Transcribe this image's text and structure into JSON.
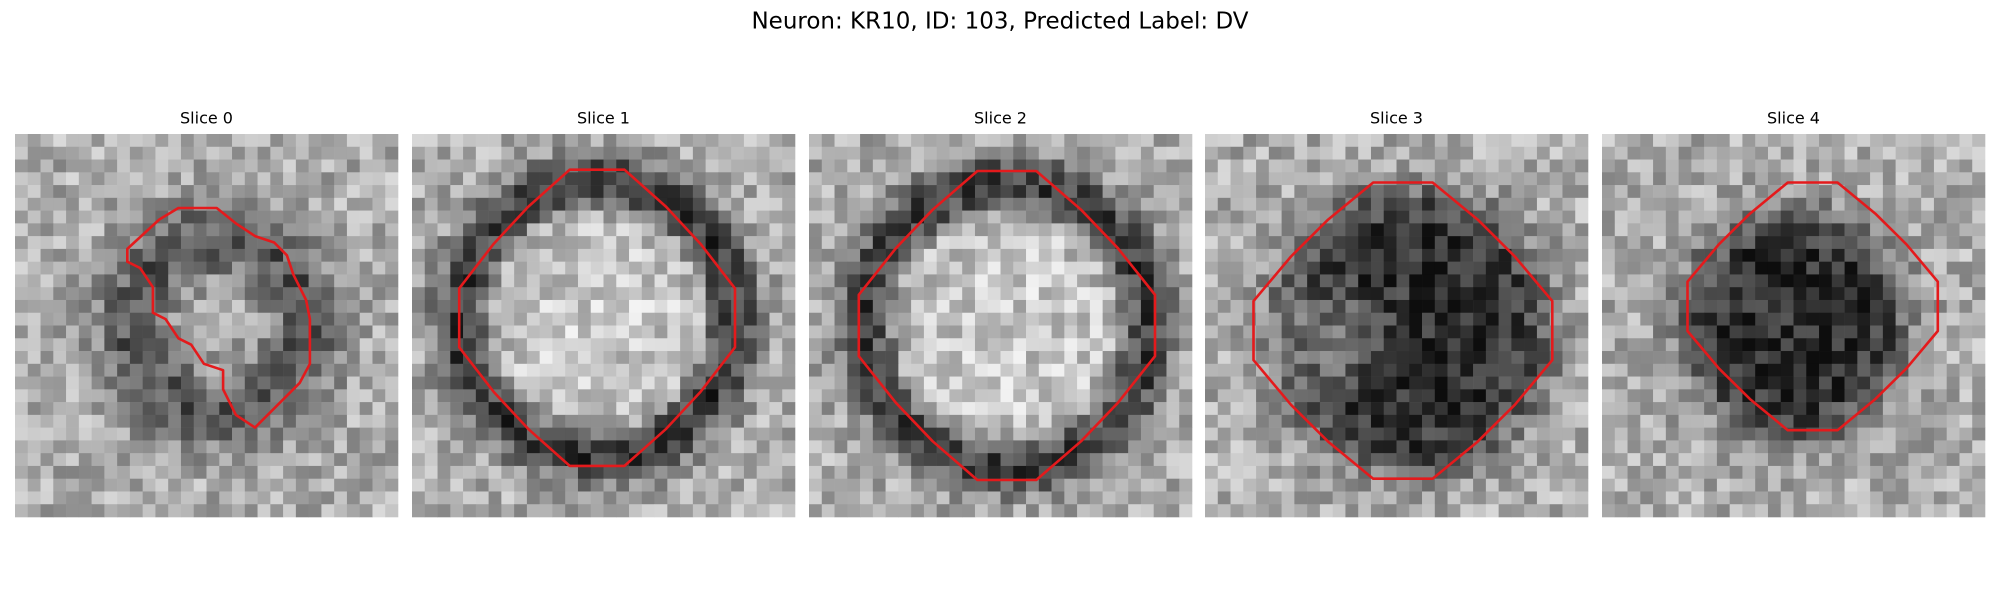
{
  "title": "Neuron: KR10, ID: 103, Predicted Label: DV",
  "panels": [
    {
      "title": "Slice 0"
    },
    {
      "title": "Slice 1"
    },
    {
      "title": "Slice 2"
    },
    {
      "title": "Slice 3"
    },
    {
      "title": "Slice 4"
    }
  ]
}
